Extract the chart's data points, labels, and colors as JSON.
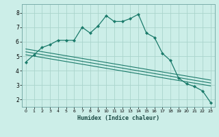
{
  "xlabel": "Humidex (Indice chaleur)",
  "ylabel": "",
  "bg_color": "#cceee8",
  "grid_color": "#aad4cc",
  "line_color": "#1a7a6a",
  "xlim": [
    -0.5,
    23.5
  ],
  "ylim": [
    1.5,
    8.6
  ],
  "xticks": [
    0,
    1,
    2,
    3,
    4,
    5,
    6,
    7,
    8,
    9,
    10,
    11,
    12,
    13,
    14,
    15,
    16,
    17,
    18,
    19,
    20,
    21,
    22,
    23
  ],
  "yticks": [
    2,
    3,
    4,
    5,
    6,
    7,
    8
  ],
  "series1_x": [
    0,
    1,
    2,
    3,
    4,
    5,
    6,
    7,
    8,
    9,
    10,
    11,
    12,
    13,
    14,
    15,
    16,
    17,
    18,
    19,
    20,
    21,
    22,
    23
  ],
  "series1_y": [
    4.6,
    5.1,
    5.6,
    5.8,
    6.1,
    6.1,
    6.1,
    7.0,
    6.6,
    7.1,
    7.8,
    7.4,
    7.4,
    7.6,
    7.9,
    6.6,
    6.3,
    5.2,
    4.7,
    3.5,
    3.1,
    2.9,
    2.6,
    1.8
  ],
  "series2_x": [
    0,
    23
  ],
  "series2_y": [
    5.5,
    3.35
  ],
  "series3_x": [
    0,
    23
  ],
  "series3_y": [
    5.3,
    3.15
  ],
  "series4_x": [
    0,
    23
  ],
  "series4_y": [
    5.1,
    2.95
  ]
}
